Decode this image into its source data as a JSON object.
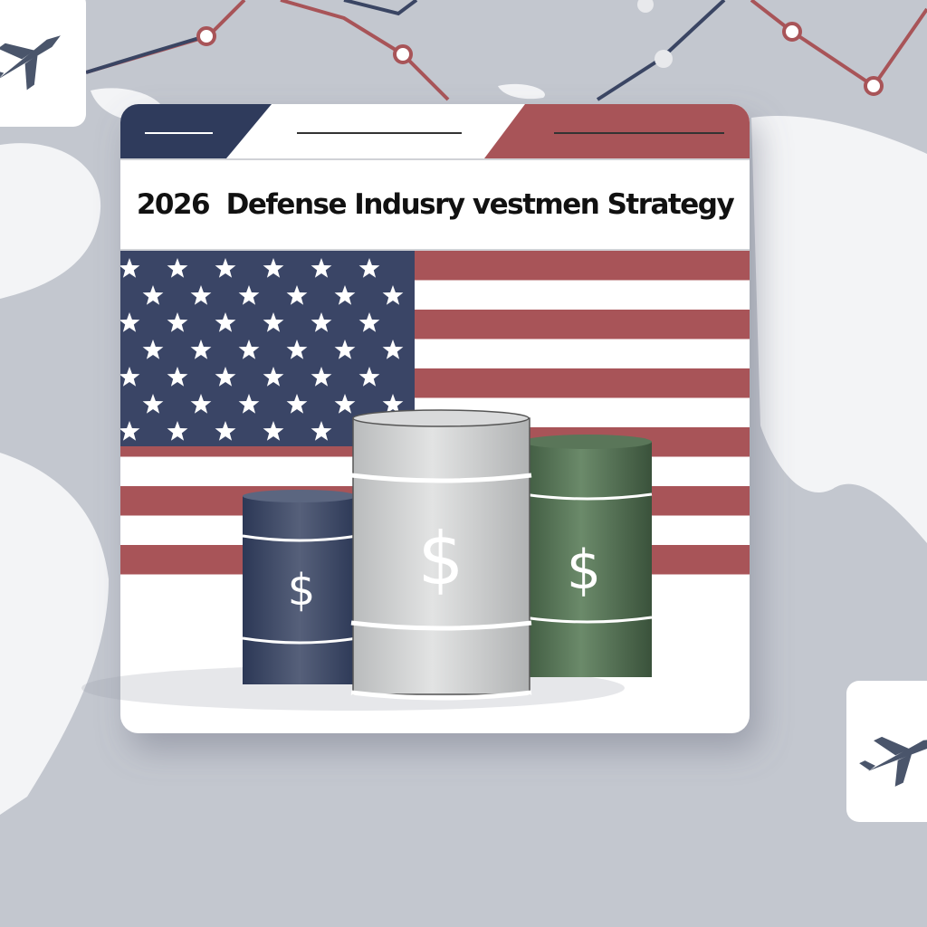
{
  "card": {
    "title": "2026  Defense Indusry vestmen Strategy"
  },
  "icons": {
    "top_left_tile": "fighter-jet-icon",
    "bottom_right_tile": "fighter-jet-icon",
    "barrel_symbol": "dollar-sign-icon"
  },
  "barrels": [
    {
      "color": "#3d4a66",
      "symbol": "$"
    },
    {
      "color": "#c9cbcc",
      "symbol": "$"
    },
    {
      "color": "#4d6a4e",
      "symbol": "$"
    }
  ],
  "colors": {
    "navy": "#2f3b5c",
    "red": "#a85458",
    "background": "#c3c7cf"
  }
}
